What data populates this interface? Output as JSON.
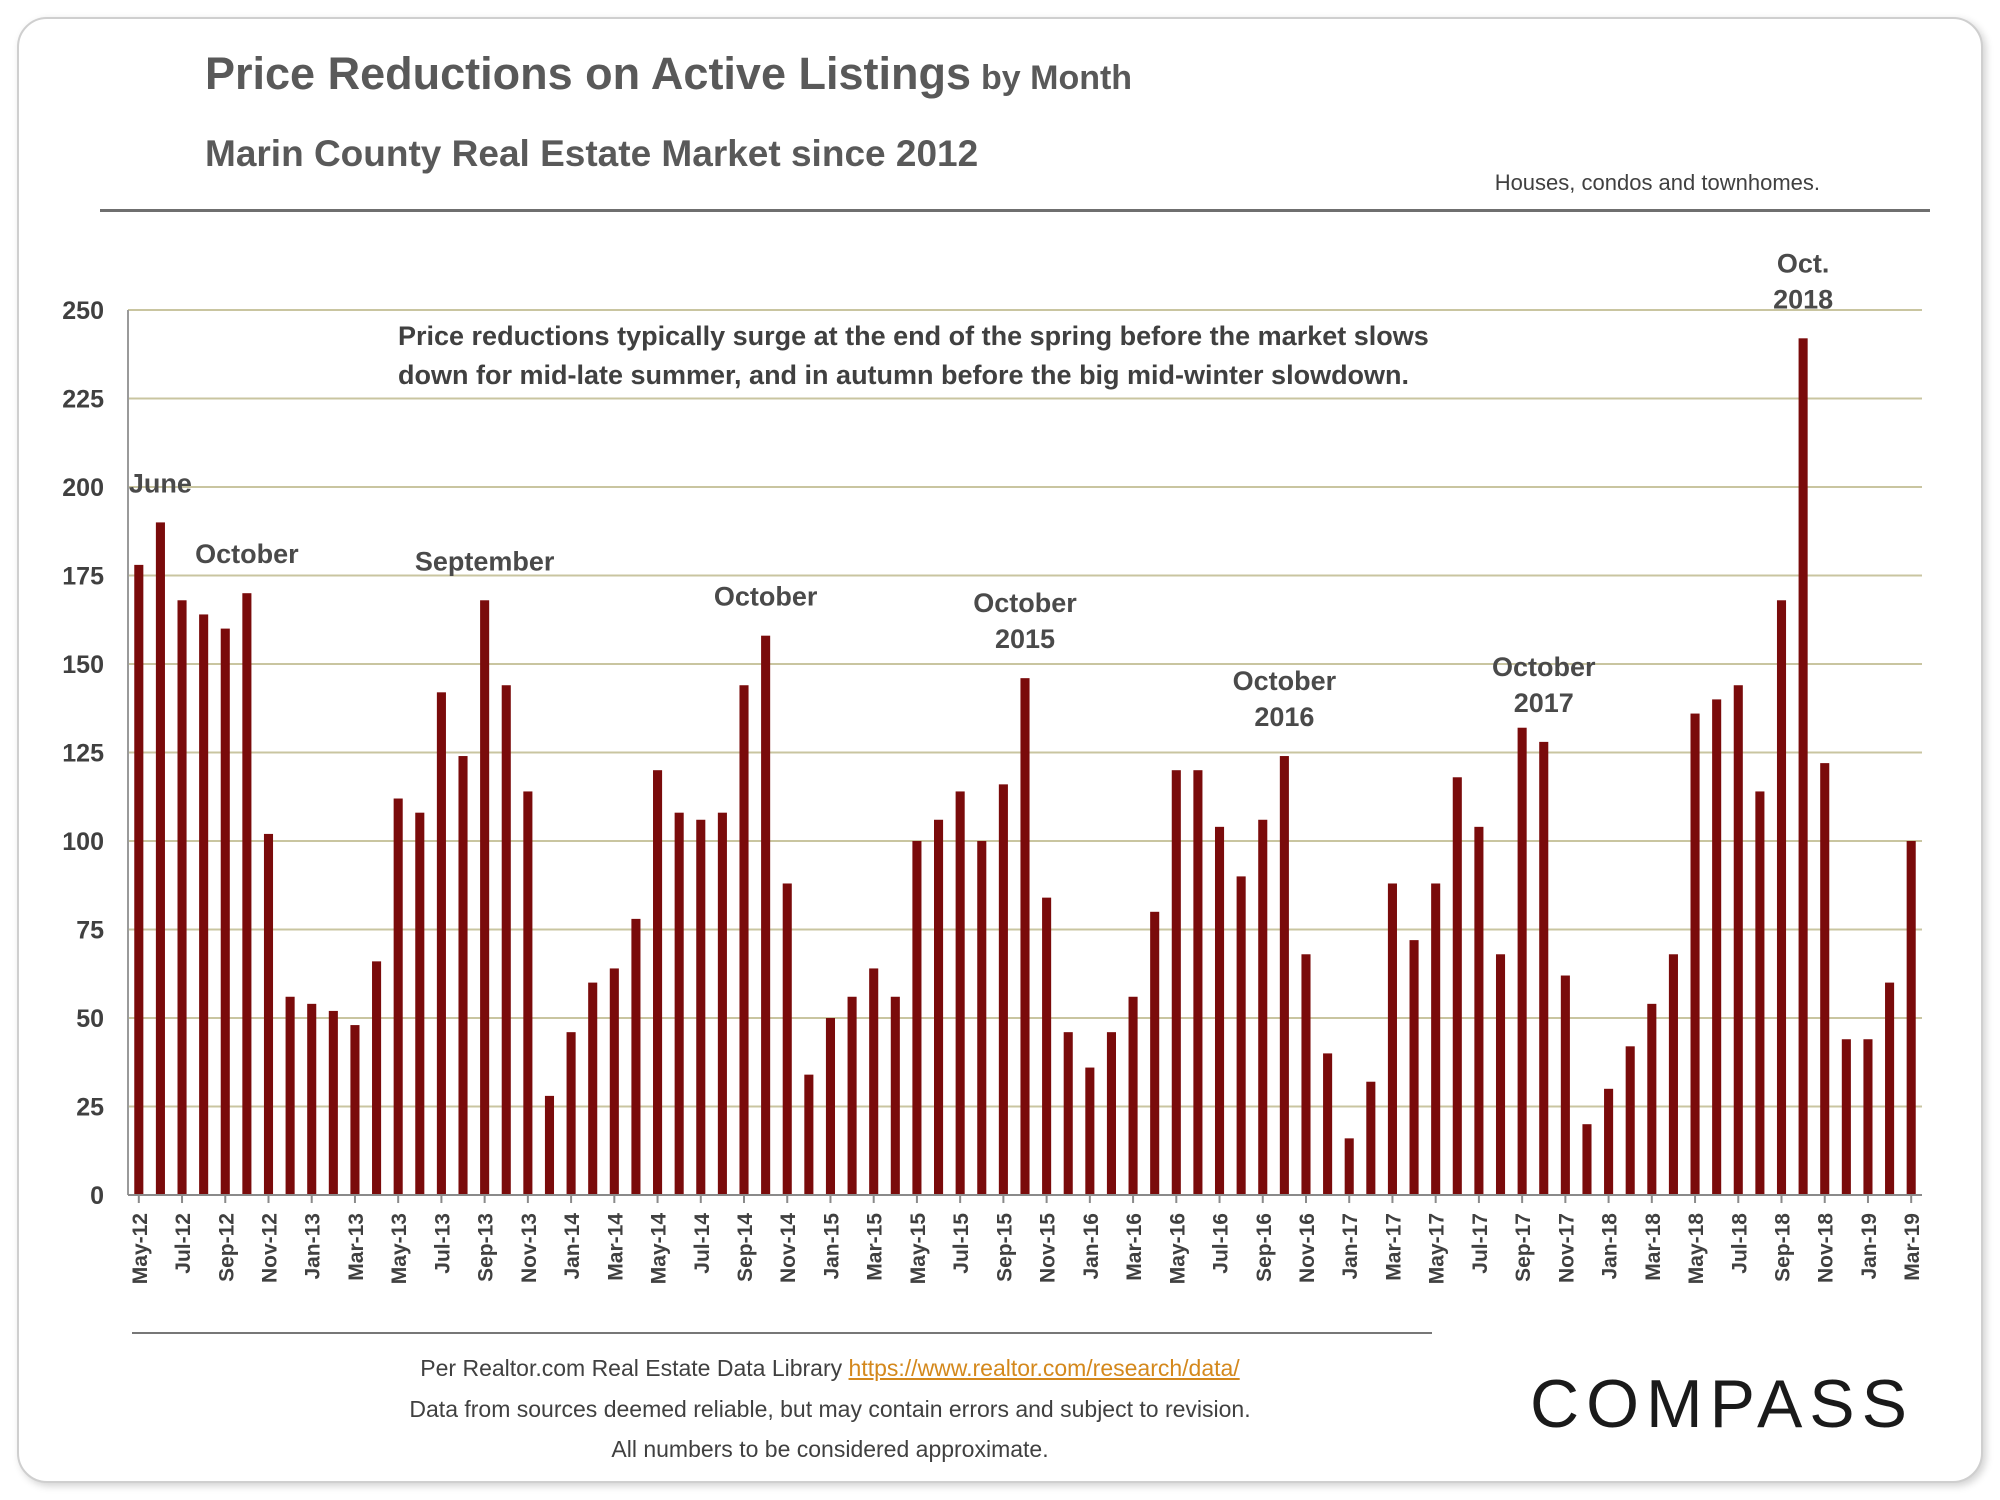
{
  "title": "Price Reductions on Active Listings",
  "title_suffix": "by Month",
  "subtitle": "Marin County Real Estate Market since 2012",
  "note": "Houses, condos and townhomes.",
  "callout": {
    "line1": "Price reductions typically surge at the end of the spring before the market slows",
    "line2": "down for mid-late summer, and in autumn before the big mid-winter slowdown."
  },
  "footer": {
    "source_prefix": "Per Realtor.com  Real Estate Data Library",
    "source_link": "https://www.realtor.com/research/data/",
    "disclaimer1": "Data from sources deemed reliable, but may contain errors and subject to revision.",
    "disclaimer2": "All numbers to be considered approximate."
  },
  "logo": "COMPASS",
  "colors": {
    "bar": "#7a0b0b",
    "grid": "#c9c5a0",
    "axis_text": "#404040"
  },
  "chart_data": {
    "type": "bar",
    "ylim": [
      0,
      250
    ],
    "yticks": [
      0,
      25,
      50,
      75,
      100,
      125,
      150,
      175,
      200,
      225,
      250
    ],
    "grid": true,
    "categories": [
      "May-12",
      "Jun-12",
      "Jul-12",
      "Aug-12",
      "Sep-12",
      "Oct-12",
      "Nov-12",
      "Dec-12",
      "Jan-13",
      "Feb-13",
      "Mar-13",
      "Apr-13",
      "May-13",
      "Jun-13",
      "Jul-13",
      "Aug-13",
      "Sep-13",
      "Oct-13",
      "Nov-13",
      "Dec-13",
      "Jan-14",
      "Feb-14",
      "Mar-14",
      "Apr-14",
      "May-14",
      "Jun-14",
      "Jul-14",
      "Aug-14",
      "Sep-14",
      "Oct-14",
      "Nov-14",
      "Dec-14",
      "Jan-15",
      "Feb-15",
      "Mar-15",
      "Apr-15",
      "May-15",
      "Jun-15",
      "Jul-15",
      "Aug-15",
      "Sep-15",
      "Oct-15",
      "Nov-15",
      "Dec-15",
      "Jan-16",
      "Feb-16",
      "Mar-16",
      "Apr-16",
      "May-16",
      "Jun-16",
      "Jul-16",
      "Aug-16",
      "Sep-16",
      "Oct-16",
      "Nov-16",
      "Dec-16",
      "Jan-17",
      "Feb-17",
      "Mar-17",
      "Apr-17",
      "May-17",
      "Jun-17",
      "Jul-17",
      "Aug-17",
      "Sep-17",
      "Oct-17",
      "Nov-17",
      "Dec-17",
      "Jan-18",
      "Feb-18",
      "Mar-18",
      "Apr-18",
      "May-18",
      "Jun-18",
      "Jul-18",
      "Aug-18",
      "Sep-18",
      "Oct-18",
      "Nov-18",
      "Dec-18",
      "Jan-19",
      "Feb-19",
      "Mar-19"
    ],
    "values": [
      178,
      190,
      168,
      164,
      160,
      170,
      102,
      56,
      54,
      52,
      48,
      66,
      112,
      108,
      142,
      124,
      168,
      144,
      114,
      28,
      46,
      60,
      64,
      78,
      120,
      108,
      106,
      108,
      144,
      158,
      88,
      34,
      50,
      56,
      64,
      56,
      100,
      106,
      114,
      100,
      116,
      146,
      84,
      46,
      36,
      46,
      56,
      80,
      120,
      120,
      104,
      90,
      106,
      124,
      68,
      40,
      16,
      32,
      88,
      72,
      88,
      118,
      104,
      68,
      132,
      128,
      62,
      20,
      30,
      42,
      54,
      68,
      136,
      140,
      144,
      114,
      168,
      242,
      122,
      44,
      44,
      60,
      100
    ],
    "x_tick_labels": [
      "May-12",
      "Jul-12",
      "Sep-12",
      "Nov-12",
      "Jan-13",
      "Mar-13",
      "May-13",
      "Jul-13",
      "Sep-13",
      "Nov-13",
      "Jan-14",
      "Mar-14",
      "May-14",
      "Jul-14",
      "Sep-14",
      "Nov-14",
      "Jan-15",
      "Mar-15",
      "May-15",
      "Jul-15",
      "Sep-15",
      "Nov-15",
      "Jan-16",
      "Mar-16",
      "May-16",
      "Jul-16",
      "Sep-16",
      "Nov-16",
      "Jan-17",
      "Mar-17",
      "May-17",
      "Jul-17",
      "Sep-17",
      "Nov-17",
      "Jan-18",
      "Mar-18",
      "May-18",
      "Jul-18",
      "Sep-18",
      "Nov-18",
      "Jan-19",
      "Mar-19"
    ],
    "annotations": [
      {
        "lines": [
          "June"
        ],
        "category": "Jun-12"
      },
      {
        "lines": [
          "October"
        ],
        "category": "Oct-12"
      },
      {
        "lines": [
          "September"
        ],
        "category": "Sep-13"
      },
      {
        "lines": [
          "October"
        ],
        "category": "Oct-14"
      },
      {
        "lines": [
          "October",
          "2015"
        ],
        "category": "Oct-15"
      },
      {
        "lines": [
          "October",
          "2016"
        ],
        "category": "Oct-16"
      },
      {
        "lines": [
          "October",
          "2017"
        ],
        "category": "Oct-17"
      },
      {
        "lines": [
          "Oct.",
          "2018"
        ],
        "category": "Oct-18"
      }
    ]
  }
}
